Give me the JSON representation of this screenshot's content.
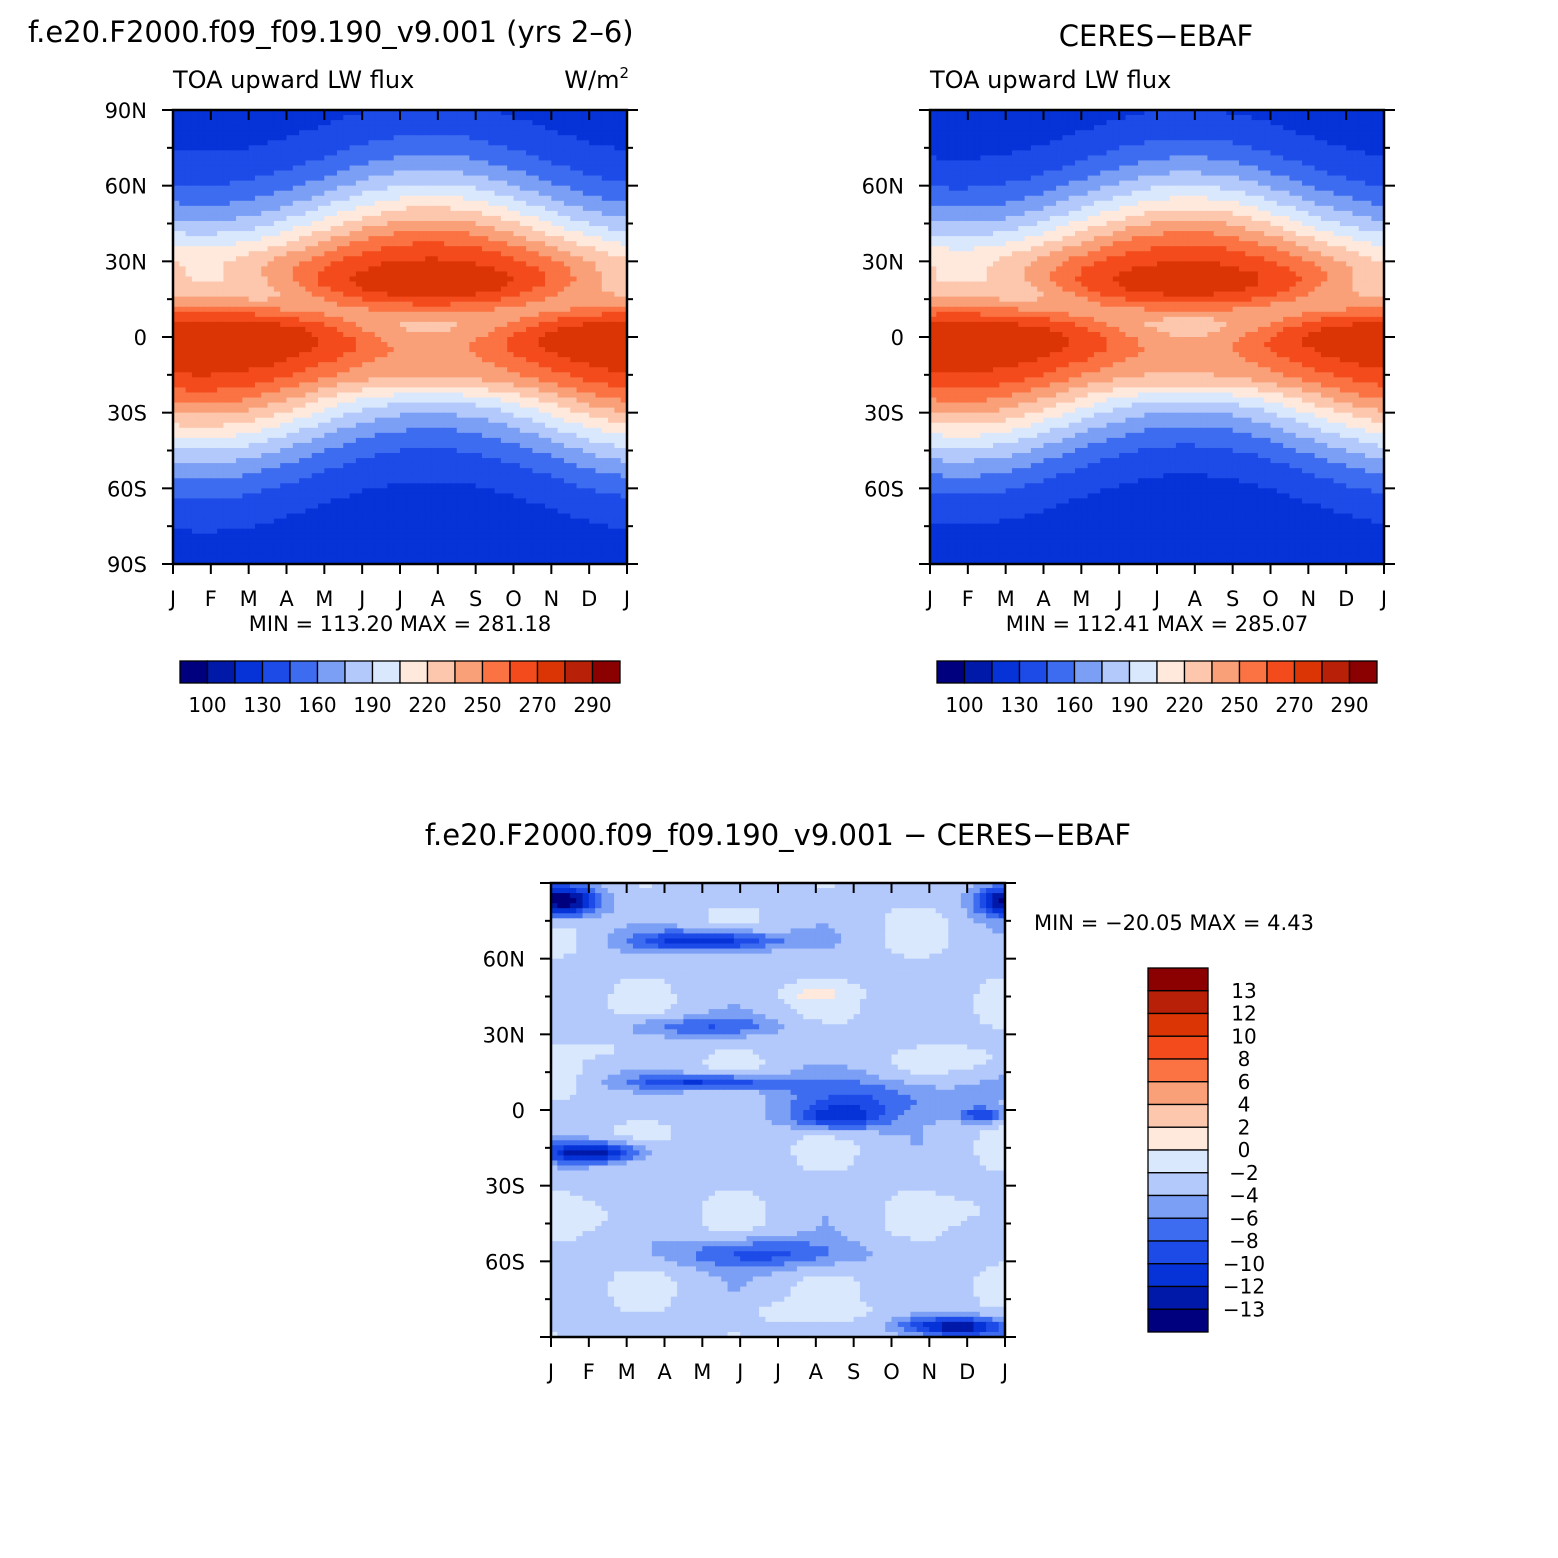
{
  "chart_data": [
    {
      "type": "heatmap",
      "title": "f.e20.F2000.f09_f09.190_v9.001 (yrs 2–6)",
      "subtitle_left": "TOA upward LW flux",
      "units": "W/m",
      "units_sup": "2",
      "xlabel": "",
      "ylabel": "",
      "x_ticklabels": [
        "J",
        "F",
        "M",
        "A",
        "M",
        "J",
        "J",
        "A",
        "S",
        "O",
        "N",
        "D",
        "J"
      ],
      "y_ticklabels": [
        "90N",
        "60N",
        "30N",
        "0",
        "30S",
        "60S",
        "90S"
      ],
      "stats": "MIN = 113.20 MAX = 281.18",
      "colorbar": {
        "orientation": "horizontal",
        "labels": [
          "100",
          "130",
          "160",
          "190",
          "220",
          "250",
          "270",
          "290"
        ],
        "colors": [
          "#00007f",
          "#0019a9",
          "#0533d8",
          "#1d4be8",
          "#3d6cf0",
          "#7b9ff5",
          "#b3c9fb",
          "#d9e8fd",
          "#ffe9dc",
          "#fcc7ad",
          "#f9a078",
          "#fb7343",
          "#f44b1c",
          "#dc3505",
          "#b82007",
          "#8b0000"
        ]
      }
    },
    {
      "type": "heatmap",
      "title": "CERES−EBAF",
      "subtitle_left": "TOA upward LW flux",
      "xlabel": "",
      "ylabel": "",
      "x_ticklabels": [
        "J",
        "F",
        "M",
        "A",
        "M",
        "J",
        "J",
        "A",
        "S",
        "O",
        "N",
        "D",
        "J"
      ],
      "y_ticklabels": [
        "60N",
        "30N",
        "0",
        "30S",
        "60S"
      ],
      "stats": "MIN = 112.41 MAX = 285.07",
      "colorbar": {
        "orientation": "horizontal",
        "labels": [
          "100",
          "130",
          "160",
          "190",
          "220",
          "250",
          "270",
          "290"
        ],
        "colors": [
          "#00007f",
          "#0019a9",
          "#0533d8",
          "#1d4be8",
          "#3d6cf0",
          "#7b9ff5",
          "#b3c9fb",
          "#d9e8fd",
          "#ffe9dc",
          "#fcc7ad",
          "#f9a078",
          "#fb7343",
          "#f44b1c",
          "#dc3505",
          "#b82007",
          "#8b0000"
        ]
      }
    },
    {
      "type": "heatmap",
      "title": "f.e20.F2000.f09_f09.190_v9.001 − CERES−EBAF",
      "xlabel": "",
      "ylabel": "",
      "x_ticklabels": [
        "J",
        "F",
        "M",
        "A",
        "M",
        "J",
        "J",
        "A",
        "S",
        "O",
        "N",
        "D",
        "J"
      ],
      "y_ticklabels": [
        "60N",
        "30N",
        "0",
        "30S",
        "60S"
      ],
      "stats": "MIN = −20.05 MAX =    4.43",
      "colorbar": {
        "orientation": "vertical",
        "labels": [
          "13",
          "12",
          "10",
          "8",
          "6",
          "4",
          "2",
          "0",
          "−2",
          "−4",
          "−6",
          "−8",
          "−10",
          "−12",
          "−13"
        ],
        "colors": [
          "#8b0000",
          "#b82007",
          "#dc3505",
          "#f44b1c",
          "#fb7343",
          "#f9a078",
          "#fcc7ad",
          "#ffe9dc",
          "#d9e8fd",
          "#b3c9fb",
          "#7b9ff5",
          "#3d6cf0",
          "#1d4be8",
          "#0533d8",
          "#0019a9",
          "#00007f"
        ]
      }
    }
  ]
}
